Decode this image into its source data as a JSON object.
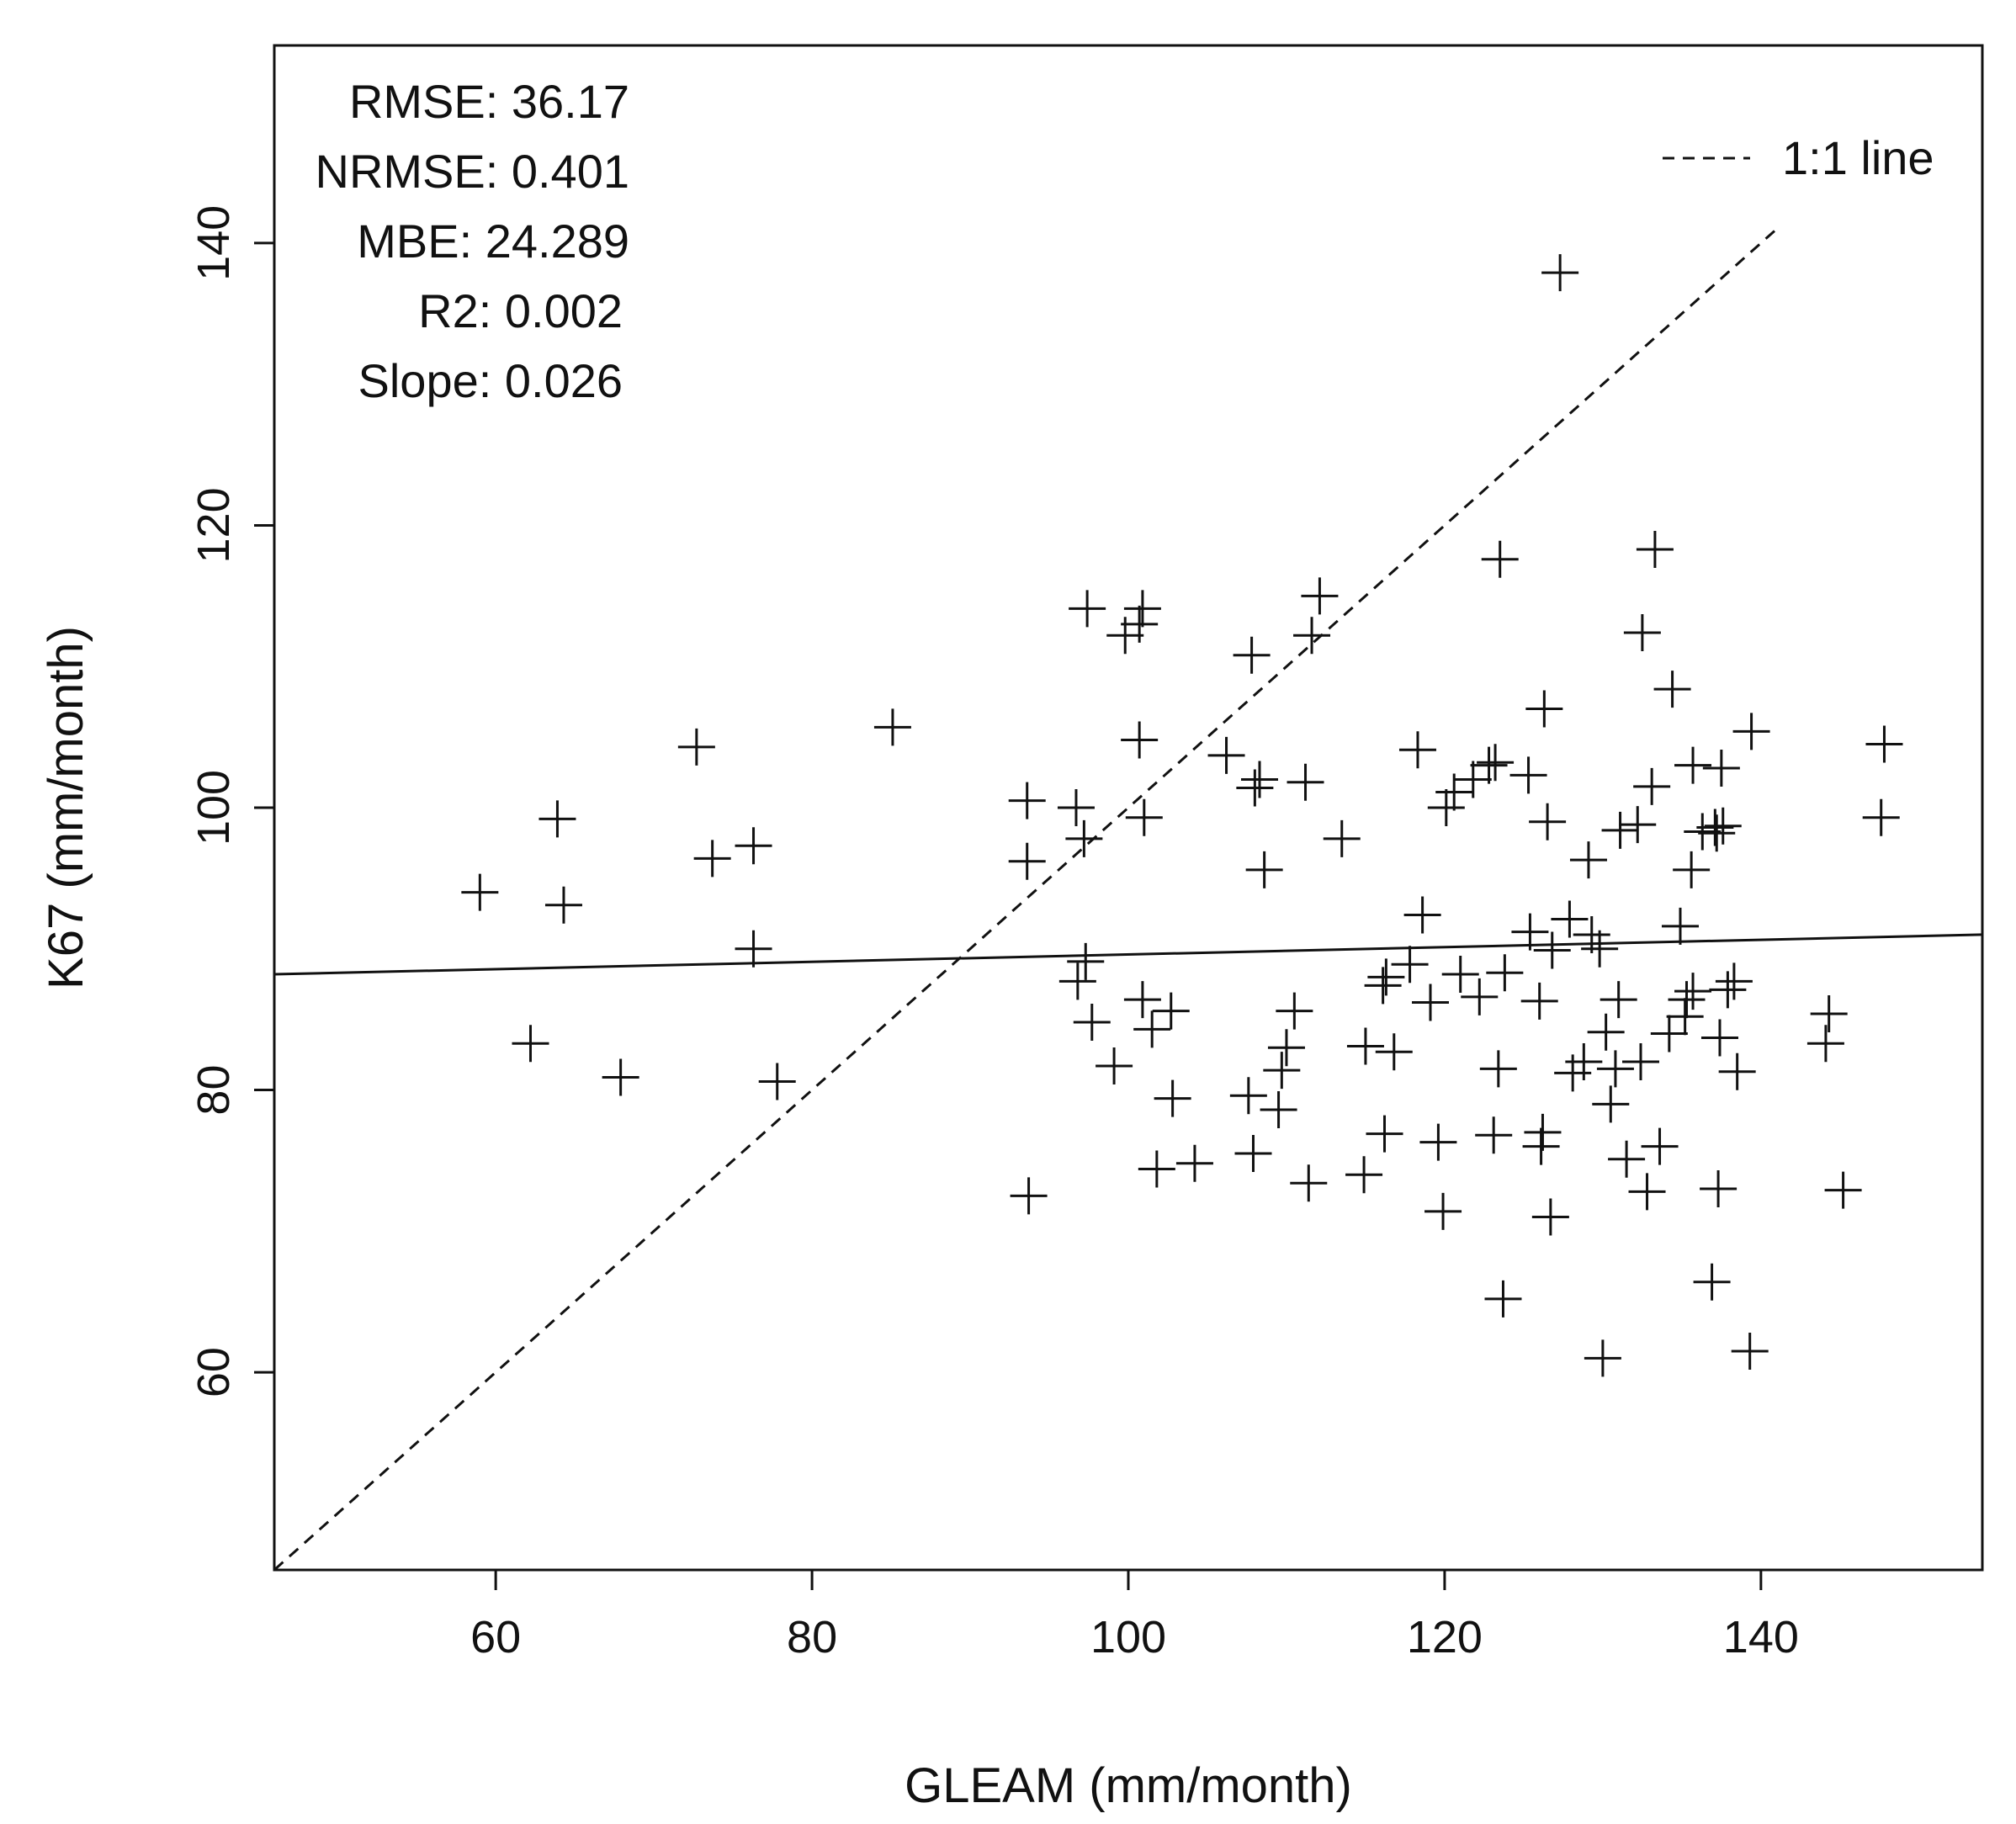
{
  "chart_data": {
    "type": "scatter",
    "title": "",
    "xlabel": "GLEAM (mm/month)",
    "ylabel": "K67 (mm/month)",
    "xlim": [
      46,
      154
    ],
    "ylim": [
      46,
      154
    ],
    "x_ticks": [
      60,
      80,
      100,
      120,
      140
    ],
    "y_ticks": [
      60,
      80,
      100,
      120,
      140
    ],
    "x_tick_labels": [
      "60",
      "80",
      "100",
      "120",
      "140"
    ],
    "y_tick_labels": [
      "60",
      "80",
      "100",
      "120",
      "140"
    ],
    "marker": "plus",
    "colors": {
      "ink": "#111111",
      "background": "#ffffff"
    },
    "stats": [
      "RMSE: 36.17",
      "NRMSE: 0.401",
      "MBE: 24.289",
      "R2: 0.002",
      "Slope: 0.026"
    ],
    "legend": {
      "label": "1:1 line",
      "line_style": "dashed",
      "placement": "top-right"
    },
    "one_to_one_line": {
      "x": [
        46,
        141
      ],
      "y": [
        46,
        141
      ]
    },
    "regression_line": {
      "slope": 0.026,
      "intercept": 87.0,
      "style": "solid"
    },
    "points": [
      [
        59,
        94
      ],
      [
        62.2,
        83.3
      ],
      [
        63.9,
        99.2
      ],
      [
        64.3,
        93.1
      ],
      [
        67.9,
        80.9
      ],
      [
        72.7,
        104.3
      ],
      [
        73.7,
        96.4
      ],
      [
        76.3,
        97.3
      ],
      [
        76.3,
        90.0
      ],
      [
        77.8,
        80.6
      ],
      [
        85.1,
        105.7
      ],
      [
        93.6,
        100.5
      ],
      [
        93.6,
        96.2
      ],
      [
        93.7,
        72.5
      ],
      [
        96.7,
        100.0
      ],
      [
        96.8,
        87.7
      ],
      [
        97.2,
        97.8
      ],
      [
        97.3,
        89.1
      ],
      [
        97.4,
        114.1
      ],
      [
        97.7,
        84.8
      ],
      [
        99.1,
        81.7
      ],
      [
        99.8,
        112.2
      ],
      [
        100.7,
        113.0
      ],
      [
        100.9,
        114.1
      ],
      [
        100.7,
        104.8
      ],
      [
        100.9,
        86.4
      ],
      [
        101.0,
        99.3
      ],
      [
        101.5,
        84.3
      ],
      [
        101.8,
        74.4
      ],
      [
        102.7,
        85.6
      ],
      [
        102.8,
        79.4
      ],
      [
        104.2,
        74.8
      ],
      [
        106.2,
        103.7
      ],
      [
        107.6,
        79.6
      ],
      [
        107.9,
        75.5
      ],
      [
        107.8,
        110.8
      ],
      [
        108.0,
        101.4
      ],
      [
        108.3,
        102.0
      ],
      [
        108.6,
        95.6
      ],
      [
        109.5,
        78.6
      ],
      [
        109.7,
        81.4
      ],
      [
        110.0,
        83.0
      ],
      [
        110.5,
        85.6
      ],
      [
        111.2,
        101.8
      ],
      [
        111.4,
        73.4
      ],
      [
        111.6,
        112.2
      ],
      [
        112.1,
        115.0
      ],
      [
        113.5,
        97.8
      ],
      [
        114.9,
        74.0
      ],
      [
        115.0,
        83.1
      ],
      [
        116.1,
        87.4
      ],
      [
        116.2,
        76.9
      ],
      [
        116.3,
        88.0
      ],
      [
        116.8,
        82.7
      ],
      [
        117.8,
        88.9
      ],
      [
        118.3,
        104.1
      ],
      [
        118.6,
        92.4
      ],
      [
        119.1,
        86.2
      ],
      [
        119.6,
        76.3
      ],
      [
        119.9,
        71.4
      ],
      [
        120.1,
        100.0
      ],
      [
        120.6,
        101.1
      ],
      [
        121.0,
        88.2
      ],
      [
        121.8,
        102.0
      ],
      [
        122.2,
        86.6
      ],
      [
        122.8,
        103.0
      ],
      [
        123.1,
        76.8
      ],
      [
        123.2,
        103.2
      ],
      [
        123.4,
        81.5
      ],
      [
        123.5,
        117.6
      ],
      [
        123.7,
        65.2
      ],
      [
        123.8,
        88.3
      ],
      [
        125.3,
        102.3
      ],
      [
        125.4,
        91.2
      ],
      [
        126.0,
        86.3
      ],
      [
        126.1,
        76.0
      ],
      [
        126.2,
        77.0
      ],
      [
        126.3,
        107.0
      ],
      [
        126.5,
        99.0
      ],
      [
        126.7,
        71.0
      ],
      [
        126.8,
        89.9
      ],
      [
        127.3,
        137.9
      ],
      [
        127.9,
        92.1
      ],
      [
        128.1,
        81.2
      ],
      [
        128.8,
        82.0
      ],
      [
        129.1,
        96.3
      ],
      [
        129.3,
        91.0
      ],
      [
        129.8,
        90.0
      ],
      [
        130.0,
        61.0
      ],
      [
        130.2,
        84.1
      ],
      [
        130.5,
        79.0
      ],
      [
        130.8,
        81.5
      ],
      [
        131.0,
        86.4
      ],
      [
        131.1,
        98.4
      ],
      [
        131.5,
        75.1
      ],
      [
        132.2,
        98.8
      ],
      [
        132.4,
        82.0
      ],
      [
        132.5,
        112.4
      ],
      [
        132.8,
        72.8
      ],
      [
        133.1,
        101.5
      ],
      [
        133.3,
        118.3
      ],
      [
        133.6,
        76.0
      ],
      [
        134.2,
        84.0
      ],
      [
        134.4,
        108.4
      ],
      [
        134.9,
        91.6
      ],
      [
        135.2,
        85.2
      ],
      [
        135.3,
        86.4
      ],
      [
        135.6,
        95.6
      ],
      [
        135.7,
        87.0
      ],
      [
        135.7,
        103.0
      ],
      [
        136.3,
        98.3
      ],
      [
        136.9,
        66.4
      ],
      [
        137.1,
        98.6
      ],
      [
        137.2,
        98.2
      ],
      [
        137.3,
        73.0
      ],
      [
        137.4,
        83.7
      ],
      [
        137.5,
        102.8
      ],
      [
        137.6,
        98.7
      ],
      [
        137.9,
        87.1
      ],
      [
        138.3,
        87.7
      ],
      [
        138.5,
        81.3
      ],
      [
        139.3,
        61.5
      ],
      [
        139.4,
        105.4
      ],
      [
        144.1,
        83.3
      ],
      [
        144.3,
        85.4
      ],
      [
        145.2,
        72.9
      ],
      [
        147.6,
        99.3
      ],
      [
        147.8,
        104.5
      ]
    ]
  }
}
